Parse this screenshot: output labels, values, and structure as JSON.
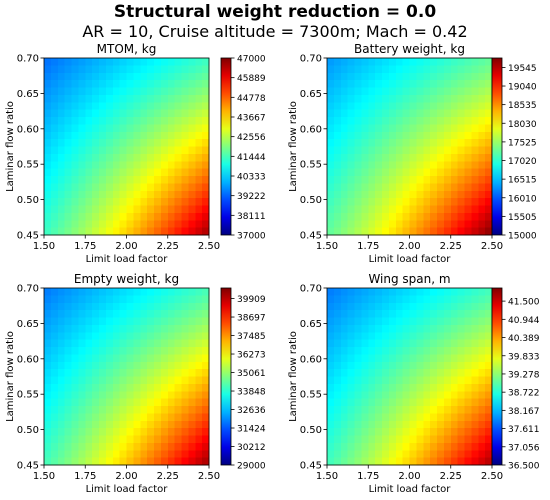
{
  "figure": {
    "title": "Structural weight reduction =  0.0",
    "subtitle": "AR = 10, Cruise altitude = 7300m; Mach = 0.42"
  },
  "chart_data": [
    {
      "type": "heatmap",
      "title": "MTOM, kg",
      "xlabel": "Limit load factor",
      "ylabel": "Laminar flow ratio",
      "xlim": [
        1.5,
        2.5
      ],
      "ylim": [
        0.45,
        0.7
      ],
      "xticks": [
        "1.50",
        "1.75",
        "2.00",
        "2.25",
        "2.50"
      ],
      "yticks": [
        "0.45",
        "0.50",
        "0.55",
        "0.60",
        "0.65",
        "0.70"
      ],
      "colorbar": {
        "colormap": "jet",
        "range": [
          37000,
          47000
        ],
        "ticks": [
          "37000",
          "38111",
          "39222",
          "40333",
          "41444",
          "42556",
          "43667",
          "44778",
          "45889",
          "47000"
        ]
      },
      "corner_values": {
        "x1.5_y0.7": 39300,
        "x2.5_y0.45": 46700
      }
    },
    {
      "type": "heatmap",
      "title": "Battery weight, kg",
      "xlabel": "Limit load factor",
      "ylabel": "Laminar flow ratio",
      "xlim": [
        1.5,
        2.5
      ],
      "ylim": [
        0.45,
        0.7
      ],
      "xticks": [
        "1.50",
        "1.75",
        "2.00",
        "2.25",
        "2.50"
      ],
      "yticks": [
        "0.45",
        "0.50",
        "0.55",
        "0.60",
        "0.65",
        "0.70"
      ],
      "colorbar": {
        "colormap": "jet",
        "range": [
          15000,
          19800
        ],
        "ticks": [
          "15000",
          "15505",
          "16010",
          "16515",
          "17020",
          "17525",
          "18030",
          "18535",
          "19040",
          "19545"
        ]
      },
      "corner_values": {
        "x1.5_y0.7": 16300,
        "x2.5_y0.45": 19800
      }
    },
    {
      "type": "heatmap",
      "title": "Empty weight, kg",
      "xlabel": "Limit load factor",
      "ylabel": "Laminar flow ratio",
      "xlim": [
        1.5,
        2.5
      ],
      "ylim": [
        0.45,
        0.7
      ],
      "xticks": [
        "1.50",
        "1.75",
        "2.00",
        "2.25",
        "2.50"
      ],
      "yticks": [
        "0.45",
        "0.50",
        "0.55",
        "0.60",
        "0.65",
        "0.70"
      ],
      "colorbar": {
        "colormap": "jet",
        "range": [
          29000,
          40600
        ],
        "ticks": [
          "29000",
          "30212",
          "31424",
          "32636",
          "33848",
          "35061",
          "36273",
          "37485",
          "38697",
          "39909"
        ]
      },
      "corner_values": {
        "x1.5_y0.7": 31800,
        "x2.5_y0.45": 40300
      }
    },
    {
      "type": "heatmap",
      "title": "Wing span, m",
      "xlabel": "Limit load factor",
      "ylabel": "Laminar flow ratio",
      "xlim": [
        1.5,
        2.5
      ],
      "ylim": [
        0.45,
        0.7
      ],
      "xticks": [
        "1.50",
        "1.75",
        "2.00",
        "2.25",
        "2.50"
      ],
      "yticks": [
        "0.45",
        "0.50",
        "0.55",
        "0.60",
        "0.65",
        "0.70"
      ],
      "colorbar": {
        "colormap": "jet",
        "range": [
          36.5,
          41.9
        ],
        "ticks": [
          "36.500",
          "37.056",
          "37.611",
          "38.167",
          "38.722",
          "39.278",
          "39.833",
          "40.389",
          "40.944",
          "41.500"
        ]
      },
      "corner_values": {
        "x1.5_y0.7": 37.8,
        "x2.5_y0.45": 41.7
      }
    }
  ]
}
